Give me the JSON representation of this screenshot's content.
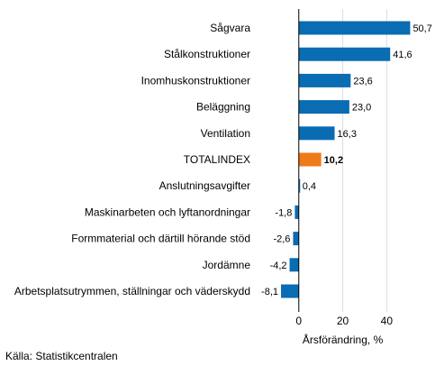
{
  "chart_data": {
    "type": "bar",
    "orientation": "horizontal",
    "categories": [
      "Sågvara",
      "Stålkonstruktioner",
      "Inomhuskonstruktioner",
      "Beläggning",
      "Ventilation",
      "TOTALINDEX",
      "Anslutningsavgifter",
      "Maskinarbeten och lyftanordningar",
      "Formmaterial och därtill hörande stöd",
      "Jordämne",
      "Arbetsplatsutrymmen, ställningar och väderskydd"
    ],
    "values": [
      50.7,
      41.6,
      23.6,
      23.0,
      16.3,
      10.2,
      0.4,
      -1.8,
      -2.6,
      -4.2,
      -8.1
    ],
    "value_labels": [
      "50,7",
      "41,6",
      "23,6",
      "23,0",
      "16,3",
      "10,2",
      "0,4",
      "-1,8",
      "-2,6",
      "-4,2",
      "-8,1"
    ],
    "highlight_category": "TOTALINDEX",
    "xlabel": "Årsförändring, %",
    "xlim": [
      -20,
      62
    ],
    "xticks": [
      0,
      20,
      40
    ],
    "xtick_labels": [
      "0",
      "20",
      "40"
    ],
    "grid": true,
    "colors": {
      "bar": "#0a6cb2",
      "highlight": "#ef7a1a",
      "grid": "#dddddd",
      "axis": "#000000"
    }
  },
  "source": "Källa: Statistikcentralen"
}
